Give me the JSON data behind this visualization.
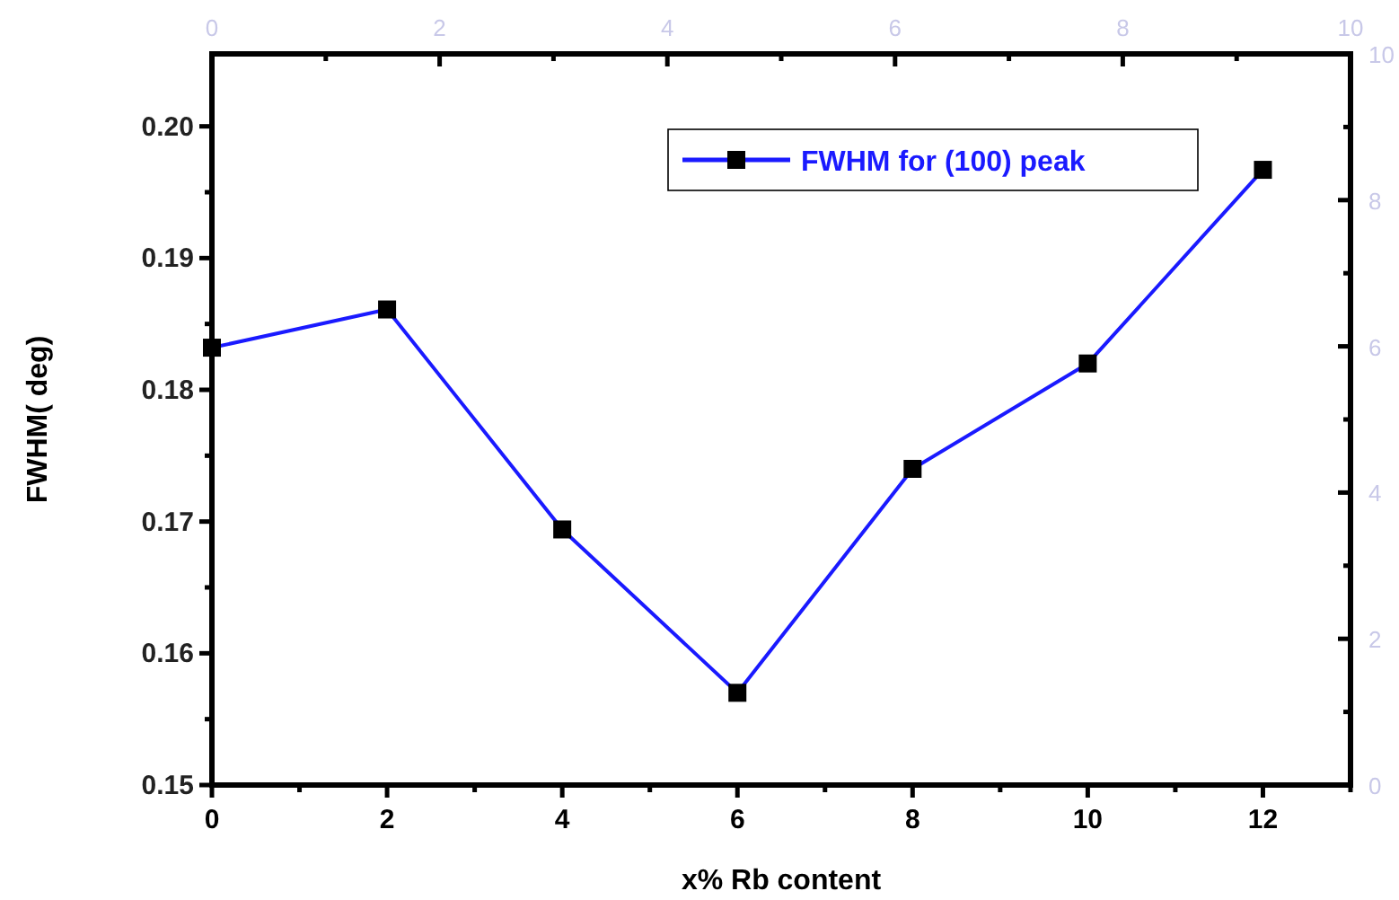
{
  "chart_data": {
    "type": "line",
    "xlabel": "x% Rb content",
    "ylabel": "FWHM( deg)",
    "x": [
      0,
      2,
      4,
      6,
      8,
      10,
      12
    ],
    "series": [
      {
        "name": "FWHM for (100) peak",
        "color": "#1a1aff",
        "values": [
          0.1832,
          0.1861,
          0.1694,
          0.157,
          0.174,
          0.182,
          0.1967
        ]
      }
    ],
    "xlim": [
      0,
      13
    ],
    "xticks": [
      0,
      {
        "value": 1,
        "label": null
      },
      2,
      {
        "value": 3,
        "label": null
      },
      4,
      {
        "value": 5,
        "label": null
      },
      6,
      {
        "value": 7,
        "label": null
      },
      8,
      {
        "value": 9,
        "label": null
      },
      10,
      {
        "value": 11,
        "label": null
      },
      12,
      {
        "value": 13,
        "label": null
      }
    ],
    "ylim": [
      0.15,
      0.2055
    ],
    "yticks": [
      0.15,
      {
        "value": 0.155,
        "label": null
      },
      0.16,
      {
        "value": 0.165,
        "label": null
      },
      0.17,
      {
        "value": 0.175,
        "label": null
      },
      0.18,
      {
        "value": 0.185,
        "label": null
      },
      0.19,
      {
        "value": 0.195,
        "label": null
      },
      {
        "value": 0.2,
        "label": "0.20"
      }
    ],
    "x2lim": [
      0,
      10
    ],
    "x2ticks": [
      0,
      {
        "value": 1,
        "label": null
      },
      2,
      {
        "value": 3,
        "label": null
      },
      4,
      {
        "value": 5,
        "label": null
      },
      6,
      {
        "value": 7,
        "label": null
      },
      8,
      {
        "value": 9,
        "label": null
      },
      10
    ],
    "y2lim": [
      0,
      10
    ],
    "y2ticks": [
      0,
      {
        "value": 1,
        "label": null
      },
      2,
      {
        "value": 3,
        "label": null
      },
      4,
      {
        "value": 5,
        "label": null
      },
      6,
      {
        "value": 7,
        "label": null
      },
      8,
      {
        "value": 9,
        "label": null
      },
      10
    ],
    "marker": "square",
    "line_style": "solid",
    "legend": "top right",
    "grid": false
  }
}
